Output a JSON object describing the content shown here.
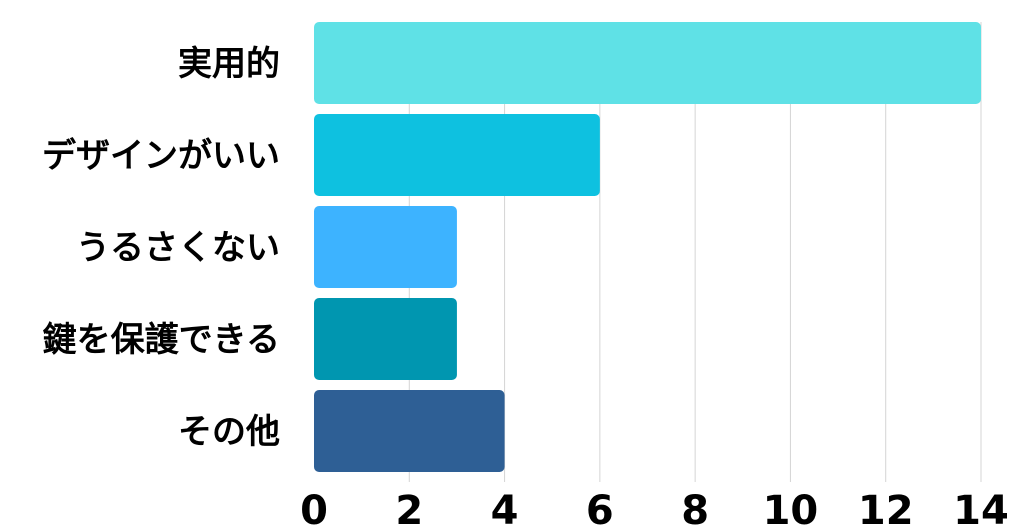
{
  "chart_data": {
    "type": "bar",
    "orientation": "horizontal",
    "title": "",
    "xlabel": "",
    "ylabel": "",
    "categories": [
      "実用的",
      "デザインがいい",
      "うるさくない",
      "鍵を保護できる",
      "その他"
    ],
    "values": [
      14,
      6,
      3,
      3,
      4
    ],
    "colors": [
      "#5fe1e6",
      "#0ec1e0",
      "#3db3ff",
      "#0096b0",
      "#2e5f95"
    ],
    "xlim": [
      0,
      14
    ],
    "xticks": [
      "0",
      "2",
      "4",
      "6",
      "8",
      "10",
      "12",
      "14"
    ],
    "grid": true,
    "legend": "none"
  }
}
